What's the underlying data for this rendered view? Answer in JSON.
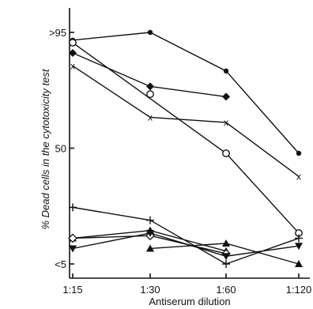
{
  "chart_data": {
    "type": "line",
    "xlabel": "Antiserum dilution",
    "ylabel": "% Dead cells in the cytotoxicity test",
    "categories": [
      "1:15",
      "1:30",
      "1:60",
      "1:120"
    ],
    "y_ticks": [
      {
        "value": 5,
        "label": "<5"
      },
      {
        "value": 50,
        "label": "50"
      },
      {
        "value": 95,
        "label": ">95"
      }
    ],
    "ylim": [
      0,
      100
    ],
    "grid": false,
    "series": [
      {
        "marker": "filled-circle",
        "values": [
          92,
          95,
          80,
          48
        ]
      },
      {
        "marker": "open-circle",
        "values": [
          91,
          null,
          48,
          17
        ]
      },
      {
        "marker": "open-circle",
        "values": [
          null,
          71,
          null,
          null
        ]
      },
      {
        "marker": "filled-diamond",
        "values": [
          87,
          74,
          70,
          null
        ]
      },
      {
        "marker": "x",
        "values": [
          82,
          62,
          60,
          39
        ]
      },
      {
        "marker": "plus",
        "values": [
          27,
          22,
          5,
          15
        ]
      },
      {
        "marker": "filled-triangle-up",
        "values": [
          15,
          18,
          10,
          null
        ]
      },
      {
        "marker": "filled-triangle-up",
        "values": [
          null,
          11,
          13,
          5
        ]
      },
      {
        "marker": "open-diamond",
        "values": [
          15,
          16,
          9,
          null
        ]
      },
      {
        "marker": "filled-triangle-down",
        "values": [
          11,
          17,
          8,
          12
        ]
      }
    ]
  }
}
